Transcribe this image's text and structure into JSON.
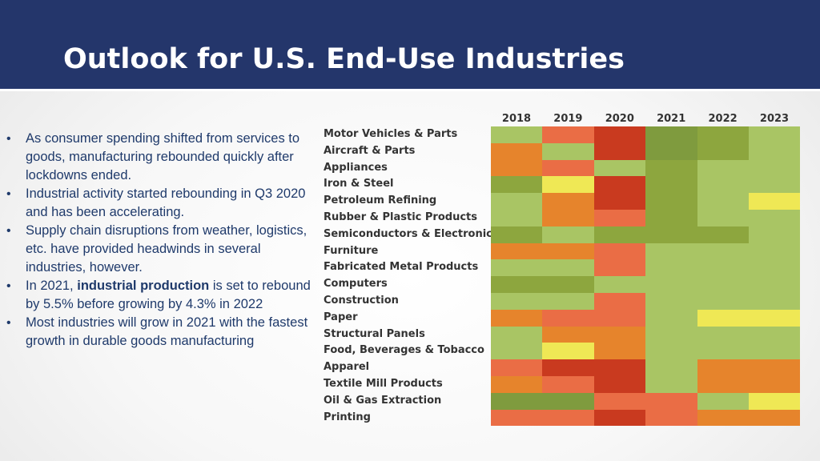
{
  "slide": {
    "title": "Outlook for U.S. End-Use Industries"
  },
  "bullets": [
    {
      "text": "As consumer spending shifted from services to goods, manufacturing rebounded quickly after lockdowns ended."
    },
    {
      "text": "Industrial activity started rebounding in Q3 2020 and has been accelerating."
    },
    {
      "text": "Supply chain disruptions from weather, logistics, etc. have provided headwinds in several industries, however."
    },
    {
      "pre": "In 2021, ",
      "em": "industrial production",
      "post": " is set to rebound by 5.5% before growing by 4.3% in 2022"
    },
    {
      "text": "Most industries will grow in 2021 with the fastest growth in durable goods manufacturing"
    }
  ],
  "colors": {
    "title_bar": "#24366b",
    "dark_red": "#c93a1f",
    "red_orange": "#ea6d45",
    "orange": "#e6842c",
    "yellow": "#efe855",
    "light_green": "#a9c564",
    "mid_green": "#8da63e",
    "dark_green": "#7f9b3e"
  },
  "chart_data": {
    "type": "heatmap",
    "columns": [
      "2018",
      "2019",
      "2020",
      "2021",
      "2022",
      "2023"
    ],
    "rows": [
      "Motor Vehicles & Parts",
      "Aircraft & Parts",
      "Appliances",
      "Iron & Steel",
      "Petroleum Refining",
      "Rubber & Plastic Products",
      "Semiconductors & Electronics",
      "Furniture",
      "Fabricated Metal Products",
      "Computers",
      "Construction",
      "Paper",
      "Structural Panels",
      "Food, Beverages & Tobacco",
      "Apparel",
      "Textile Mill Products",
      "Oil & Gas Extraction",
      "Printing"
    ],
    "levels": [
      [
        "light_green",
        "red_orange",
        "dark_red",
        "dark_green",
        "mid_green",
        "light_green"
      ],
      [
        "orange",
        "light_green",
        "dark_red",
        "dark_green",
        "mid_green",
        "light_green"
      ],
      [
        "orange",
        "red_orange",
        "light_green",
        "mid_green",
        "light_green",
        "light_green"
      ],
      [
        "mid_green",
        "yellow",
        "dark_red",
        "mid_green",
        "light_green",
        "light_green"
      ],
      [
        "light_green",
        "orange",
        "dark_red",
        "mid_green",
        "light_green",
        "yellow"
      ],
      [
        "light_green",
        "orange",
        "red_orange",
        "mid_green",
        "light_green",
        "light_green"
      ],
      [
        "mid_green",
        "light_green",
        "mid_green",
        "mid_green",
        "mid_green",
        "light_green"
      ],
      [
        "orange",
        "orange",
        "red_orange",
        "light_green",
        "light_green",
        "light_green"
      ],
      [
        "light_green",
        "light_green",
        "red_orange",
        "light_green",
        "light_green",
        "light_green"
      ],
      [
        "mid_green",
        "mid_green",
        "light_green",
        "light_green",
        "light_green",
        "light_green"
      ],
      [
        "light_green",
        "light_green",
        "red_orange",
        "light_green",
        "light_green",
        "light_green"
      ],
      [
        "orange",
        "red_orange",
        "red_orange",
        "light_green",
        "yellow",
        "yellow"
      ],
      [
        "light_green",
        "orange",
        "orange",
        "light_green",
        "light_green",
        "light_green"
      ],
      [
        "light_green",
        "yellow",
        "orange",
        "light_green",
        "light_green",
        "light_green"
      ],
      [
        "red_orange",
        "dark_red",
        "dark_red",
        "light_green",
        "orange",
        "orange"
      ],
      [
        "orange",
        "red_orange",
        "dark_red",
        "light_green",
        "orange",
        "orange"
      ],
      [
        "dark_green",
        "dark_green",
        "red_orange",
        "red_orange",
        "light_green",
        "yellow"
      ],
      [
        "red_orange",
        "red_orange",
        "dark_red",
        "red_orange",
        "orange",
        "orange"
      ]
    ],
    "legend": "none",
    "grid": false
  }
}
